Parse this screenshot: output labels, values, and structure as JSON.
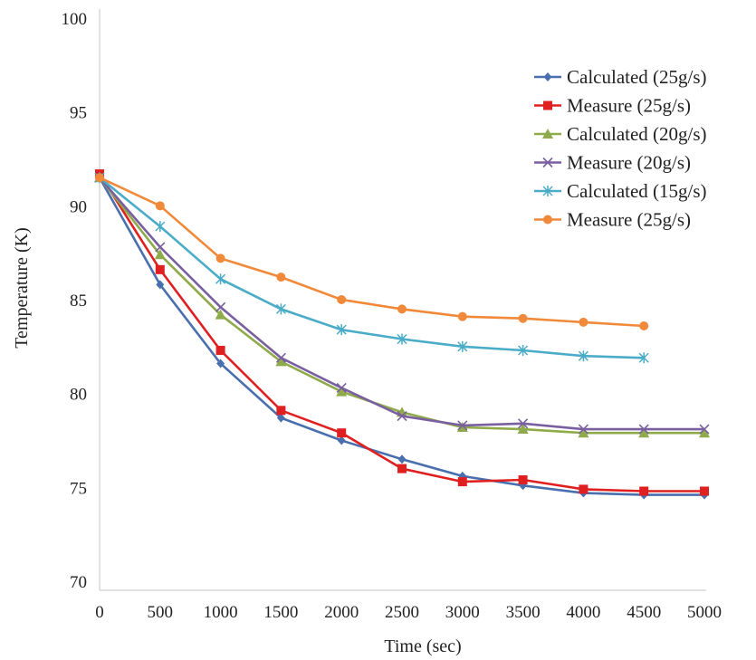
{
  "chart_data": {
    "type": "line",
    "title": "",
    "xlabel": "Time (sec)",
    "ylabel": "Temperature (K)",
    "xlim": [
      0,
      5000
    ],
    "ylim": [
      70,
      100
    ],
    "x_ticks": [
      "0",
      "500",
      "1000",
      "1500",
      "2000",
      "2500",
      "3000",
      "3500",
      "4000",
      "4500",
      "5000"
    ],
    "y_ticks": [
      "70",
      "75",
      "80",
      "85",
      "90",
      "95",
      "100"
    ],
    "grid": false,
    "legend_position": "top-right",
    "series": [
      {
        "name": "Calculated (25g/s)",
        "color": "#4a6fae",
        "marker": "diamond",
        "x": [
          0,
          500,
          1000,
          1500,
          2000,
          2500,
          3000,
          3500,
          4000,
          4500,
          5000
        ],
        "y": [
          91.5,
          85.8,
          81.6,
          78.7,
          77.5,
          76.5,
          75.6,
          75.1,
          74.7,
          74.6,
          74.6
        ]
      },
      {
        "name": "Measure (25g/s)",
        "color": "#e02020",
        "marker": "square",
        "x": [
          0,
          500,
          1000,
          1500,
          2000,
          2500,
          3000,
          3500,
          4000,
          4500,
          5000
        ],
        "y": [
          91.7,
          86.6,
          82.3,
          79.1,
          77.9,
          76.0,
          75.3,
          75.4,
          74.9,
          74.8,
          74.8
        ]
      },
      {
        "name": "Calculated (20g/s)",
        "color": "#8faa4a",
        "marker": "triangle",
        "x": [
          0,
          500,
          1000,
          1500,
          2000,
          2500,
          3000,
          3500,
          4000,
          4500,
          5000
        ],
        "y": [
          91.5,
          87.4,
          84.2,
          81.7,
          80.1,
          79.0,
          78.2,
          78.1,
          77.9,
          77.9,
          77.9
        ]
      },
      {
        "name": "Measure (20g/s)",
        "color": "#7a5fa0",
        "marker": "cross",
        "x": [
          0,
          500,
          1000,
          1500,
          2000,
          2500,
          3000,
          3500,
          4000,
          4500,
          5000
        ],
        "y": [
          91.5,
          87.8,
          84.6,
          81.9,
          80.3,
          78.8,
          78.3,
          78.4,
          78.1,
          78.1,
          78.1
        ]
      },
      {
        "name": "Calculated (15g/s)",
        "color": "#4aacc6",
        "marker": "star",
        "x": [
          0,
          500,
          1000,
          1500,
          2000,
          2500,
          3000,
          3500,
          4000,
          4500
        ],
        "y": [
          91.5,
          88.9,
          86.1,
          84.5,
          83.4,
          82.9,
          82.5,
          82.3,
          82.0,
          81.9
        ]
      },
      {
        "name": "Measure (25g/s)",
        "color": "#f08a3a",
        "marker": "circle",
        "x": [
          0,
          500,
          1000,
          1500,
          2000,
          2500,
          3000,
          3500,
          4000,
          4500
        ],
        "y": [
          91.5,
          90.0,
          87.2,
          86.2,
          85.0,
          84.5,
          84.1,
          84.0,
          83.8,
          83.6
        ]
      }
    ]
  }
}
